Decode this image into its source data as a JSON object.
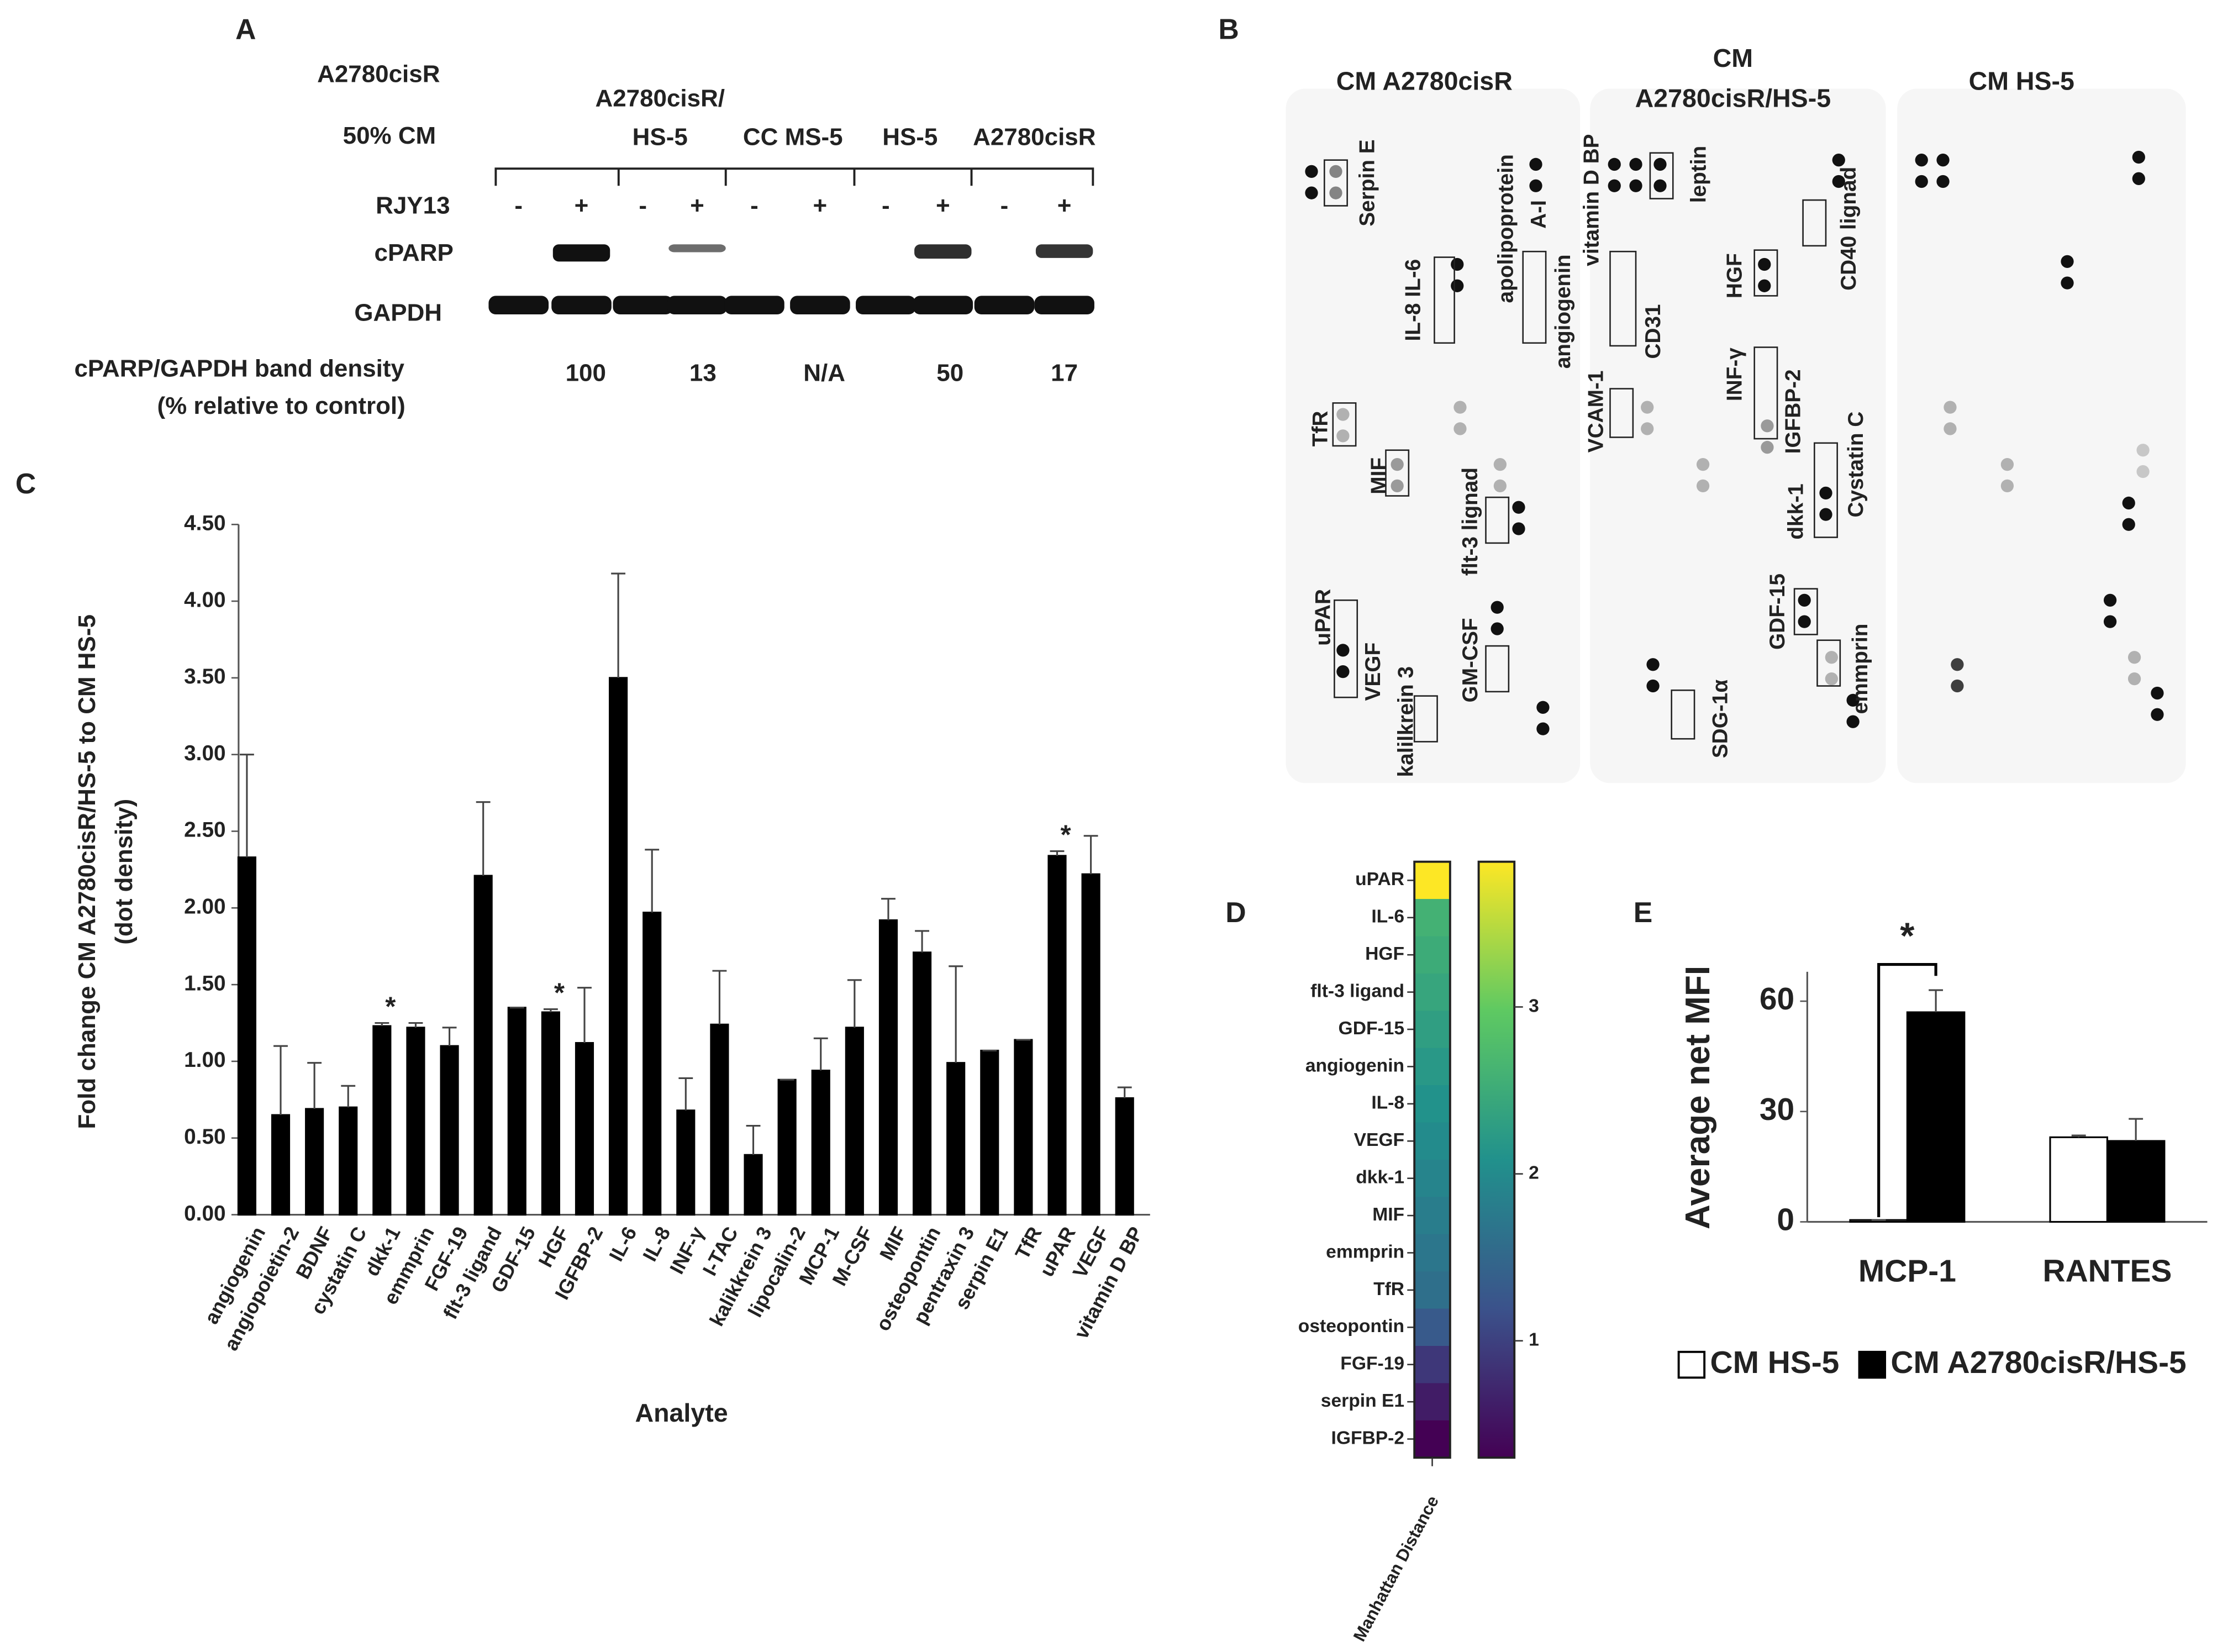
{
  "panel_a": {
    "label": "A",
    "cell_line": "A2780cisR",
    "cm_label": "50% CM",
    "groups": [
      [
        "A2780cisR/",
        "HS-5"
      ],
      [
        "CC MS-5"
      ],
      [
        "HS-5"
      ],
      [
        "A2780cisR"
      ]
    ],
    "treatment": "RJY13",
    "signs": [
      "-",
      "+",
      "-",
      "+",
      "-",
      "+",
      "-",
      "+",
      "-",
      "+"
    ],
    "bands": [
      "cPARP",
      "GAPDH"
    ],
    "density_label": [
      "cPARP/GAPDH band density",
      "(% relative to control)"
    ],
    "densities": [
      100,
      13,
      "N/A",
      50,
      17
    ]
  },
  "panel_b": {
    "label": "B",
    "titles": [
      [
        "CM A2780cisR"
      ],
      [
        "CM",
        "A2780cisR/HS-5"
      ],
      [
        "CM HS-5"
      ]
    ],
    "labels": [
      "Serpin E",
      "IL-8 IL-6",
      "apolipoprotein",
      "A-I",
      "angiogenin",
      "TfR",
      "MIF",
      "flt-3 lignad",
      "uPAR",
      "VEGF",
      "kalilkrein 3",
      "GM-CSF",
      "vitamin D BP",
      "leptin",
      "CD31",
      "VCAM-1",
      "SDG-1α",
      "HGF",
      "CD40 lignad",
      "INF-γ",
      "IGFBP-2",
      "Cystatin C",
      "dkk-1",
      "GDF-15",
      "emmprin"
    ]
  },
  "chart_data": [
    {
      "type": "bar",
      "label": "C",
      "ylabel": [
        "Fold change CM A2780cisR/HS-5 to CM HS-5",
        "(dot density)"
      ],
      "xlabel": "Analyte",
      "categories": [
        "angiogenin",
        "angiopoietin-2",
        "BDNF",
        "cystatin C",
        "dkk-1",
        "emmprin",
        "FGF-19",
        "flt-3 ligand",
        "GDF-15",
        "HGF",
        "IGFBP-2",
        "IL-6",
        "IL-8",
        "INF-γ",
        "I-TAC",
        "kalikkrein 3",
        "lipocalin-2",
        "MCP-1",
        "M-CSF",
        "MIF",
        "osteopontin",
        "pentraxin 3",
        "serpin E1",
        "TfR",
        "uPAR",
        "VEGF",
        "vitamin D BP"
      ],
      "values": [
        2.33,
        0.65,
        0.69,
        0.7,
        1.23,
        1.22,
        1.1,
        2.21,
        1.35,
        1.32,
        1.12,
        3.5,
        1.97,
        0.68,
        1.24,
        0.39,
        0.88,
        0.94,
        1.22,
        1.92,
        1.71,
        0.99,
        1.07,
        1.14,
        2.34,
        2.22,
        0.76
      ],
      "errors": [
        0.67,
        0.45,
        0.3,
        0.14,
        0.02,
        0.03,
        0.12,
        0.48,
        0,
        0.02,
        0.36,
        0.68,
        0.41,
        0.21,
        0.35,
        0.19,
        0,
        0.21,
        0.31,
        0.14,
        0.14,
        0.63,
        0,
        0,
        0.03,
        0.25,
        0.07
      ],
      "significance": [
        null,
        null,
        null,
        null,
        "*",
        null,
        null,
        null,
        null,
        "*",
        null,
        null,
        null,
        null,
        null,
        null,
        null,
        null,
        null,
        null,
        null,
        null,
        null,
        null,
        "*",
        null,
        null
      ],
      "color": "#000000",
      "ylim": [
        0,
        4.5
      ],
      "yticks": [
        {
          "value": 0,
          "label": "0.00"
        },
        {
          "value": 0.5,
          "label": "0.50"
        },
        {
          "value": 1,
          "label": "1.00"
        },
        {
          "value": 1.5,
          "label": "1.50"
        },
        {
          "value": 2,
          "label": "2.00"
        },
        {
          "value": 2.5,
          "label": "2.50"
        },
        {
          "value": 3,
          "label": "3.00"
        },
        {
          "value": 3.5,
          "label": "3.50"
        },
        {
          "value": 4,
          "label": "4.00"
        },
        {
          "value": 4.5,
          "label": "4.50"
        }
      ]
    },
    {
      "type": "heatmap",
      "label": "D",
      "xlabel": "Manhattan Distance",
      "categories": [
        "uPAR",
        "IL-6",
        "HGF",
        "flt-3 ligand",
        "GDF-15",
        "angiogenin",
        "IL-8",
        "VEGF",
        "dkk-1",
        "MIF",
        "emmprin",
        "TfR",
        "osteopontin",
        "FGF-19",
        "serpin E1",
        "IGFBP-2"
      ],
      "values": [
        3.87,
        2.6,
        2.5,
        2.4,
        2.3,
        2.2,
        2.1,
        2.0,
        1.9,
        1.8,
        1.7,
        1.6,
        1.3,
        0.9,
        0.6,
        0.3
      ],
      "colormap": "viridis",
      "zlim": [
        0.3,
        3.87
      ],
      "zticks": [
        1,
        2,
        3
      ]
    },
    {
      "type": "bar",
      "label": "E",
      "ylabel": [
        "Average net MFI"
      ],
      "categories": [
        "MCP-1",
        "RANTES"
      ],
      "series": [
        {
          "name": "CM HS-5",
          "color": "#ffffff",
          "values": [
            0.5,
            23
          ],
          "errors": [
            0,
            0.5
          ]
        },
        {
          "name": "CM A2780cisR/HS-5",
          "color": "#000000",
          "values": [
            57,
            22
          ],
          "errors": [
            6,
            6
          ]
        }
      ],
      "significance": [
        "*",
        null
      ],
      "ylim": [
        0,
        68
      ],
      "yticks": [
        0,
        30,
        60
      ],
      "legend": "bottom"
    }
  ]
}
